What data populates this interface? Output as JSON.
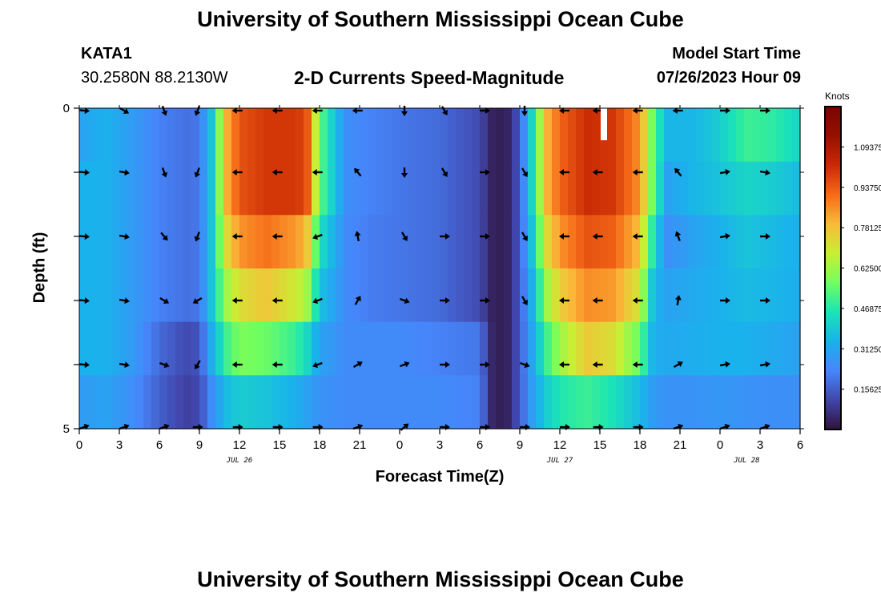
{
  "header": {
    "title": "University of Southern Mississippi Ocean Cube",
    "station_id": "KATA1",
    "coordinates": "30.2580N  88.2130W",
    "subtitle": "2-D Currents Speed-Magnitude",
    "model_start_label": "Model Start Time",
    "model_start_value": "07/26/2023 Hour 09"
  },
  "footer": {
    "title": "University of Southern Mississippi Ocean Cube"
  },
  "chart_data": {
    "type": "heatmap",
    "title": "2-D Currents Speed-Magnitude",
    "xlabel": "Forecast Time(Z)",
    "ylabel": "Depth (ft)",
    "units": "Knots",
    "x_hours_from_start": [
      0,
      3,
      6,
      9,
      12,
      15,
      18,
      21,
      24,
      27,
      30,
      33,
      36,
      39,
      42,
      45,
      48,
      51,
      54
    ],
    "x_tick_labels": [
      "0",
      "3",
      "6",
      "9",
      "12",
      "15",
      "18",
      "21",
      "0",
      "3",
      "6",
      "9",
      "12",
      "15",
      "18",
      "21",
      "0",
      "3",
      "6"
    ],
    "x_range_hours": [
      0,
      54
    ],
    "date_labels": [
      {
        "text": "JUL 26",
        "hour": 12
      },
      {
        "text": "JUL 27",
        "hour": 36
      },
      {
        "text": "JUL 28",
        "hour": 50
      }
    ],
    "y_tick_labels": [
      "0",
      "5"
    ],
    "y_range": [
      0,
      5
    ],
    "depth_levels": 6,
    "colorbar": {
      "min": 0.0,
      "max": 1.25,
      "tick_values": [
        1.09375,
        0.9375,
        0.78125,
        0.625,
        0.46875,
        0.3125,
        0.15625
      ],
      "tick_labels": [
        "1.09375",
        "0.93750",
        "0.78125",
        "0.62500",
        "0.46875",
        "0.31250",
        "0.15625"
      ],
      "colors": [
        "#30123b",
        "#4146ac",
        "#4686fb",
        "#1ab2ec",
        "#1ae4b6",
        "#72fe5e",
        "#c8ef34",
        "#faba39",
        "#f66b19",
        "#ca2a04",
        "#961000",
        "#7a0403"
      ]
    },
    "speed_keys_hours": [
      0,
      2,
      4,
      6,
      8,
      9,
      10,
      11,
      12,
      14,
      16,
      17,
      18,
      20,
      22,
      24,
      27,
      30,
      31,
      32,
      33,
      34,
      35,
      36,
      38,
      40,
      42,
      43,
      44,
      46,
      48,
      50,
      52,
      54
    ],
    "speed_profiles": [
      [
        0.3,
        0.34,
        0.28,
        0.22,
        0.19,
        0.2,
        0.4,
        0.8,
        0.95,
        1.0,
        1.0,
        0.98,
        0.55,
        0.25,
        0.22,
        0.2,
        0.18,
        0.12,
        0.03,
        0.03,
        0.15,
        0.45,
        0.8,
        0.92,
        1.02,
        1.0,
        0.85,
        0.55,
        0.35,
        0.35,
        0.4,
        0.5,
        0.48,
        0.42
      ],
      [
        0.34,
        0.34,
        0.28,
        0.22,
        0.19,
        0.2,
        0.4,
        0.8,
        0.95,
        1.0,
        1.0,
        0.98,
        0.55,
        0.25,
        0.22,
        0.2,
        0.18,
        0.12,
        0.03,
        0.03,
        0.15,
        0.45,
        0.8,
        0.92,
        1.02,
        1.0,
        0.85,
        0.55,
        0.3,
        0.35,
        0.38,
        0.42,
        0.4,
        0.36
      ],
      [
        0.34,
        0.34,
        0.28,
        0.22,
        0.19,
        0.2,
        0.4,
        0.72,
        0.85,
        0.9,
        0.85,
        0.8,
        0.45,
        0.24,
        0.21,
        0.2,
        0.18,
        0.12,
        0.03,
        0.03,
        0.15,
        0.4,
        0.72,
        0.85,
        0.95,
        0.93,
        0.78,
        0.45,
        0.25,
        0.3,
        0.34,
        0.38,
        0.36,
        0.33
      ],
      [
        0.34,
        0.34,
        0.28,
        0.22,
        0.19,
        0.2,
        0.4,
        0.62,
        0.72,
        0.77,
        0.7,
        0.65,
        0.38,
        0.24,
        0.21,
        0.2,
        0.18,
        0.12,
        0.03,
        0.03,
        0.15,
        0.35,
        0.62,
        0.75,
        0.86,
        0.84,
        0.7,
        0.36,
        0.3,
        0.32,
        0.34,
        0.36,
        0.35,
        0.33
      ],
      [
        0.34,
        0.34,
        0.28,
        0.18,
        0.12,
        0.14,
        0.34,
        0.5,
        0.58,
        0.56,
        0.5,
        0.44,
        0.3,
        0.24,
        0.24,
        0.24,
        0.22,
        0.2,
        0.03,
        0.03,
        0.15,
        0.32,
        0.5,
        0.62,
        0.76,
        0.72,
        0.55,
        0.33,
        0.32,
        0.33,
        0.34,
        0.34,
        0.32,
        0.3
      ],
      [
        0.28,
        0.3,
        0.25,
        0.16,
        0.1,
        0.12,
        0.26,
        0.36,
        0.4,
        0.38,
        0.34,
        0.3,
        0.26,
        0.24,
        0.24,
        0.24,
        0.24,
        0.22,
        0.03,
        0.03,
        0.15,
        0.3,
        0.4,
        0.46,
        0.5,
        0.45,
        0.36,
        0.28,
        0.26,
        0.26,
        0.27,
        0.26,
        0.25,
        0.25
      ]
    ],
    "vector_hours": [
      0,
      3,
      6,
      8.5,
      11.5,
      14.5,
      17.5,
      20.5,
      24,
      27,
      30,
      33,
      36,
      38.5,
      41.5,
      44.5,
      48,
      51
    ],
    "vector_depths": [
      0,
      1,
      2,
      3,
      4,
      5
    ],
    "vector_angles_deg": [
      [
        5,
        30,
        70,
        110,
        180,
        180,
        180,
        180,
        90,
        60,
        0,
        90,
        180,
        180,
        180,
        180,
        0,
        0
      ],
      [
        5,
        10,
        70,
        110,
        180,
        180,
        180,
        -130,
        90,
        60,
        0,
        60,
        180,
        180,
        180,
        -130,
        -10,
        10
      ],
      [
        5,
        10,
        50,
        110,
        180,
        180,
        160,
        -100,
        60,
        0,
        0,
        60,
        180,
        180,
        180,
        -110,
        -10,
        0
      ],
      [
        5,
        10,
        30,
        150,
        180,
        180,
        160,
        -60,
        20,
        0,
        0,
        60,
        180,
        180,
        180,
        -80,
        0,
        0
      ],
      [
        5,
        10,
        20,
        120,
        180,
        180,
        160,
        -30,
        -20,
        0,
        0,
        20,
        180,
        180,
        180,
        -30,
        -10,
        -10
      ],
      [
        -20,
        -20,
        -20,
        0,
        0,
        0,
        0,
        -20,
        -40,
        0,
        0,
        0,
        0,
        0,
        0,
        -20,
        -20,
        -20
      ]
    ]
  }
}
